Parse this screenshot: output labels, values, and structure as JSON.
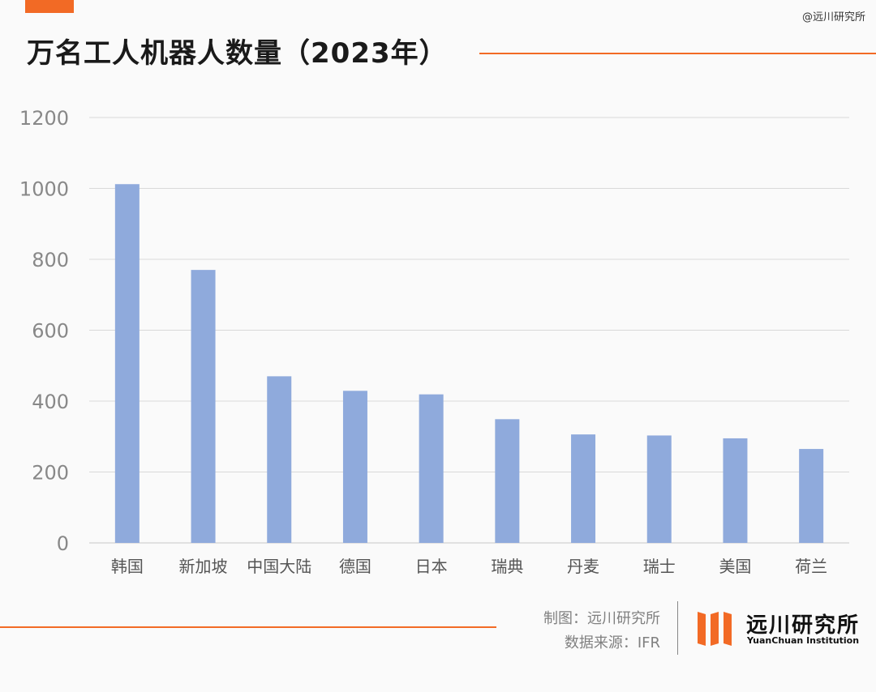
{
  "header": {
    "title": "万名工人机器人数量（2023年）",
    "watermark": "@远川研究所"
  },
  "footer": {
    "made_by": "制图：远川研究所",
    "source": "数据来源：IFR",
    "brand_cn": "远川研究所",
    "brand_en": "YuanChuan Institution"
  },
  "colors": {
    "accent": "#f26a25",
    "bar": "#8faadc",
    "grid": "#d9d9d9"
  },
  "chart_data": {
    "type": "bar",
    "title": "万名工人机器人数量（2023年）",
    "categories": [
      "韩国",
      "新加坡",
      "中国大陆",
      "德国",
      "日本",
      "瑞典",
      "丹麦",
      "瑞士",
      "美国",
      "荷兰"
    ],
    "values": [
      1012,
      770,
      470,
      429,
      419,
      349,
      306,
      303,
      295,
      265
    ],
    "yticks": [
      0,
      200,
      400,
      600,
      800,
      1000,
      1200
    ],
    "ylim": [
      0,
      1200
    ],
    "grid": true,
    "legend": "none"
  }
}
